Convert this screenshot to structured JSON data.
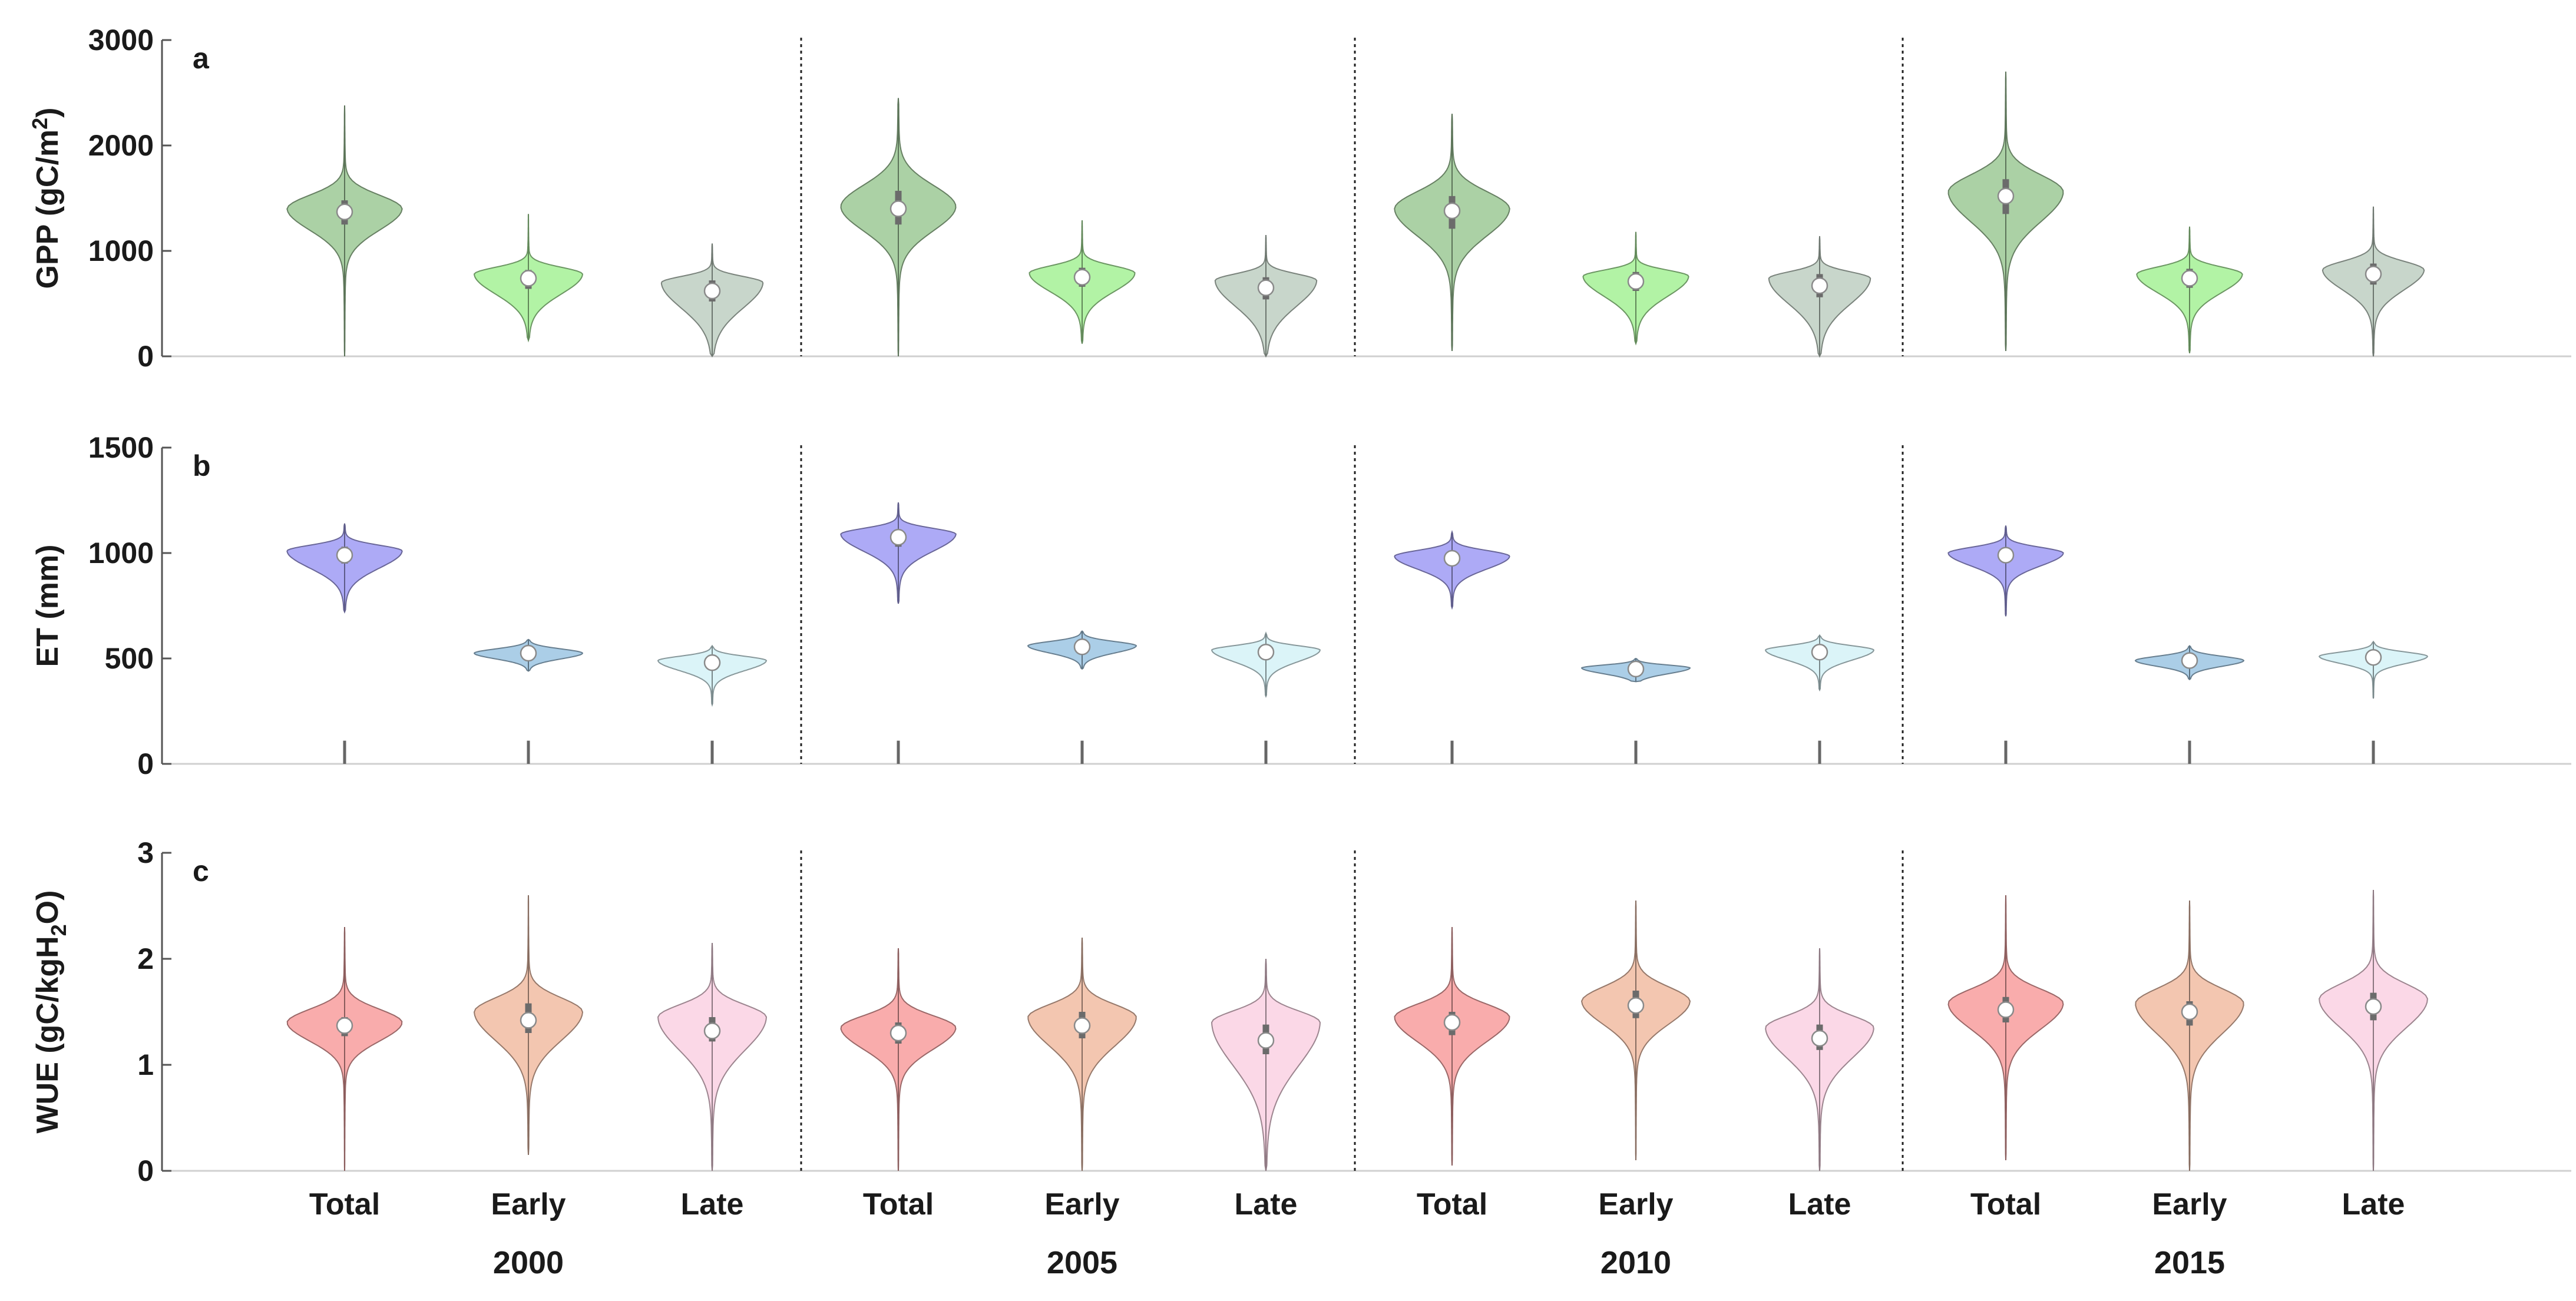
{
  "chart_data": [
    {
      "type": "violin",
      "panel": "a",
      "ylabel": "GPP (gC/m",
      "ylabel_sup": "2",
      "ylabel_tail": ")",
      "ylim": [
        0,
        3000
      ],
      "yticks": [
        0,
        1000,
        2000,
        3000
      ],
      "groups": [
        "2000",
        "2005",
        "2010",
        "2015"
      ],
      "categories": [
        "Total",
        "Early",
        "Late"
      ],
      "colors": [
        "#a6cfa0",
        "#aef2a0",
        "#c5d4c8"
      ],
      "violins": [
        {
          "group": "2000",
          "category": "Total",
          "median": 1370,
          "q1": 1250,
          "q3": 1480,
          "min": 0,
          "max": 2380,
          "mode": 1400,
          "width": 0.85
        },
        {
          "group": "2000",
          "category": "Early",
          "median": 740,
          "q1": 640,
          "q3": 820,
          "min": 150,
          "max": 1350,
          "mode": 780,
          "width": 0.8
        },
        {
          "group": "2000",
          "category": "Late",
          "median": 620,
          "q1": 520,
          "q3": 720,
          "min": 0,
          "max": 1070,
          "mode": 700,
          "width": 0.75
        },
        {
          "group": "2005",
          "category": "Total",
          "median": 1400,
          "q1": 1250,
          "q3": 1570,
          "min": 0,
          "max": 2450,
          "mode": 1420,
          "width": 0.85
        },
        {
          "group": "2005",
          "category": "Early",
          "median": 750,
          "q1": 660,
          "q3": 840,
          "min": 120,
          "max": 1290,
          "mode": 790,
          "width": 0.78
        },
        {
          "group": "2005",
          "category": "Late",
          "median": 650,
          "q1": 540,
          "q3": 750,
          "min": 0,
          "max": 1150,
          "mode": 720,
          "width": 0.75
        },
        {
          "group": "2010",
          "category": "Total",
          "median": 1380,
          "q1": 1210,
          "q3": 1520,
          "min": 50,
          "max": 2300,
          "mode": 1400,
          "width": 0.85
        },
        {
          "group": "2010",
          "category": "Early",
          "median": 710,
          "q1": 620,
          "q3": 800,
          "min": 120,
          "max": 1180,
          "mode": 760,
          "width": 0.78
        },
        {
          "group": "2010",
          "category": "Late",
          "median": 670,
          "q1": 560,
          "q3": 780,
          "min": 0,
          "max": 1140,
          "mode": 740,
          "width": 0.75
        },
        {
          "group": "2015",
          "category": "Total",
          "median": 1520,
          "q1": 1350,
          "q3": 1680,
          "min": 50,
          "max": 2700,
          "mode": 1560,
          "width": 0.85
        },
        {
          "group": "2015",
          "category": "Early",
          "median": 740,
          "q1": 650,
          "q3": 830,
          "min": 30,
          "max": 1230,
          "mode": 780,
          "width": 0.78
        },
        {
          "group": "2015",
          "category": "Late",
          "median": 780,
          "q1": 680,
          "q3": 880,
          "min": 0,
          "max": 1420,
          "mode": 820,
          "width": 0.75
        }
      ]
    },
    {
      "type": "violin",
      "panel": "b",
      "ylabel": "ET (mm)",
      "ylim": [
        0,
        1500
      ],
      "yticks": [
        0,
        500,
        1000,
        1500
      ],
      "groups": [
        "2000",
        "2005",
        "2010",
        "2015"
      ],
      "categories": [
        "Total",
        "Early",
        "Late"
      ],
      "colors": [
        "#a9a5f5",
        "#a6cbe6",
        "#d9f3f8"
      ],
      "violins": [
        {
          "group": "2000",
          "category": "Total",
          "median": 990,
          "q1": 950,
          "q3": 1030,
          "min": 720,
          "max": 1140,
          "mode": 1010,
          "width": 0.85
        },
        {
          "group": "2000",
          "category": "Early",
          "median": 525,
          "q1": 505,
          "q3": 540,
          "min": 440,
          "max": 590,
          "mode": 525,
          "width": 0.8
        },
        {
          "group": "2000",
          "category": "Late",
          "median": 480,
          "q1": 455,
          "q3": 505,
          "min": 280,
          "max": 560,
          "mode": 490,
          "width": 0.8
        },
        {
          "group": "2005",
          "category": "Total",
          "median": 1075,
          "q1": 1030,
          "q3": 1110,
          "min": 760,
          "max": 1240,
          "mode": 1090,
          "width": 0.85
        },
        {
          "group": "2005",
          "category": "Early",
          "median": 555,
          "q1": 535,
          "q3": 575,
          "min": 450,
          "max": 630,
          "mode": 560,
          "width": 0.8
        },
        {
          "group": "2005",
          "category": "Late",
          "median": 530,
          "q1": 500,
          "q3": 555,
          "min": 320,
          "max": 620,
          "mode": 540,
          "width": 0.8
        },
        {
          "group": "2010",
          "category": "Total",
          "median": 975,
          "q1": 940,
          "q3": 1005,
          "min": 740,
          "max": 1100,
          "mode": 985,
          "width": 0.85
        },
        {
          "group": "2010",
          "category": "Early",
          "median": 450,
          "q1": 435,
          "q3": 465,
          "min": 390,
          "max": 500,
          "mode": 455,
          "width": 0.8
        },
        {
          "group": "2010",
          "category": "Late",
          "median": 530,
          "q1": 505,
          "q3": 555,
          "min": 350,
          "max": 610,
          "mode": 540,
          "width": 0.8
        },
        {
          "group": "2015",
          "category": "Total",
          "median": 990,
          "q1": 955,
          "q3": 1020,
          "min": 700,
          "max": 1130,
          "mode": 1000,
          "width": 0.85
        },
        {
          "group": "2015",
          "category": "Early",
          "median": 490,
          "q1": 470,
          "q3": 505,
          "min": 400,
          "max": 560,
          "mode": 490,
          "width": 0.8
        },
        {
          "group": "2015",
          "category": "Late",
          "median": 505,
          "q1": 485,
          "q3": 525,
          "min": 310,
          "max": 580,
          "mode": 510,
          "width": 0.8
        }
      ],
      "base_ticks_to": 110
    },
    {
      "type": "violin",
      "panel": "c",
      "ylabel": "WUE (gC/kgH",
      "ylabel_sub": "2",
      "ylabel_tail": "O)",
      "ylim": [
        0,
        3
      ],
      "yticks": [
        0,
        1,
        2,
        3
      ],
      "groups": [
        "2000",
        "2005",
        "2010",
        "2015"
      ],
      "categories": [
        "Total",
        "Early",
        "Late"
      ],
      "colors": [
        "#f9a8a8",
        "#f2c3ac",
        "#fbd6e6"
      ],
      "violins": [
        {
          "group": "2000",
          "category": "Total",
          "median": 1.37,
          "q1": 1.27,
          "q3": 1.45,
          "min": 0.0,
          "max": 2.3,
          "mode": 1.4,
          "width": 0.85
        },
        {
          "group": "2000",
          "category": "Early",
          "median": 1.42,
          "q1": 1.3,
          "q3": 1.58,
          "min": 0.15,
          "max": 2.6,
          "mode": 1.5,
          "width": 0.8
        },
        {
          "group": "2000",
          "category": "Late",
          "median": 1.32,
          "q1": 1.22,
          "q3": 1.45,
          "min": 0.0,
          "max": 2.15,
          "mode": 1.45,
          "width": 0.8
        },
        {
          "group": "2005",
          "category": "Total",
          "median": 1.3,
          "q1": 1.2,
          "q3": 1.4,
          "min": 0.0,
          "max": 2.1,
          "mode": 1.35,
          "width": 0.85
        },
        {
          "group": "2005",
          "category": "Early",
          "median": 1.37,
          "q1": 1.25,
          "q3": 1.5,
          "min": 0.0,
          "max": 2.2,
          "mode": 1.45,
          "width": 0.8
        },
        {
          "group": "2005",
          "category": "Late",
          "median": 1.23,
          "q1": 1.1,
          "q3": 1.38,
          "min": 0.0,
          "max": 2.0,
          "mode": 1.4,
          "width": 0.8
        },
        {
          "group": "2010",
          "category": "Total",
          "median": 1.4,
          "q1": 1.28,
          "q3": 1.5,
          "min": 0.05,
          "max": 2.3,
          "mode": 1.45,
          "width": 0.85
        },
        {
          "group": "2010",
          "category": "Early",
          "median": 1.56,
          "q1": 1.44,
          "q3": 1.7,
          "min": 0.1,
          "max": 2.55,
          "mode": 1.6,
          "width": 0.8
        },
        {
          "group": "2010",
          "category": "Late",
          "median": 1.25,
          "q1": 1.14,
          "q3": 1.38,
          "min": 0.0,
          "max": 2.1,
          "mode": 1.35,
          "width": 0.8
        },
        {
          "group": "2015",
          "category": "Total",
          "median": 1.52,
          "q1": 1.4,
          "q3": 1.64,
          "min": 0.1,
          "max": 2.6,
          "mode": 1.58,
          "width": 0.85
        },
        {
          "group": "2015",
          "category": "Early",
          "median": 1.5,
          "q1": 1.37,
          "q3": 1.6,
          "min": 0.0,
          "max": 2.55,
          "mode": 1.58,
          "width": 0.8
        },
        {
          "group": "2015",
          "category": "Late",
          "median": 1.55,
          "q1": 1.42,
          "q3": 1.68,
          "min": 0.0,
          "max": 2.65,
          "mode": 1.62,
          "width": 0.8
        }
      ]
    }
  ]
}
